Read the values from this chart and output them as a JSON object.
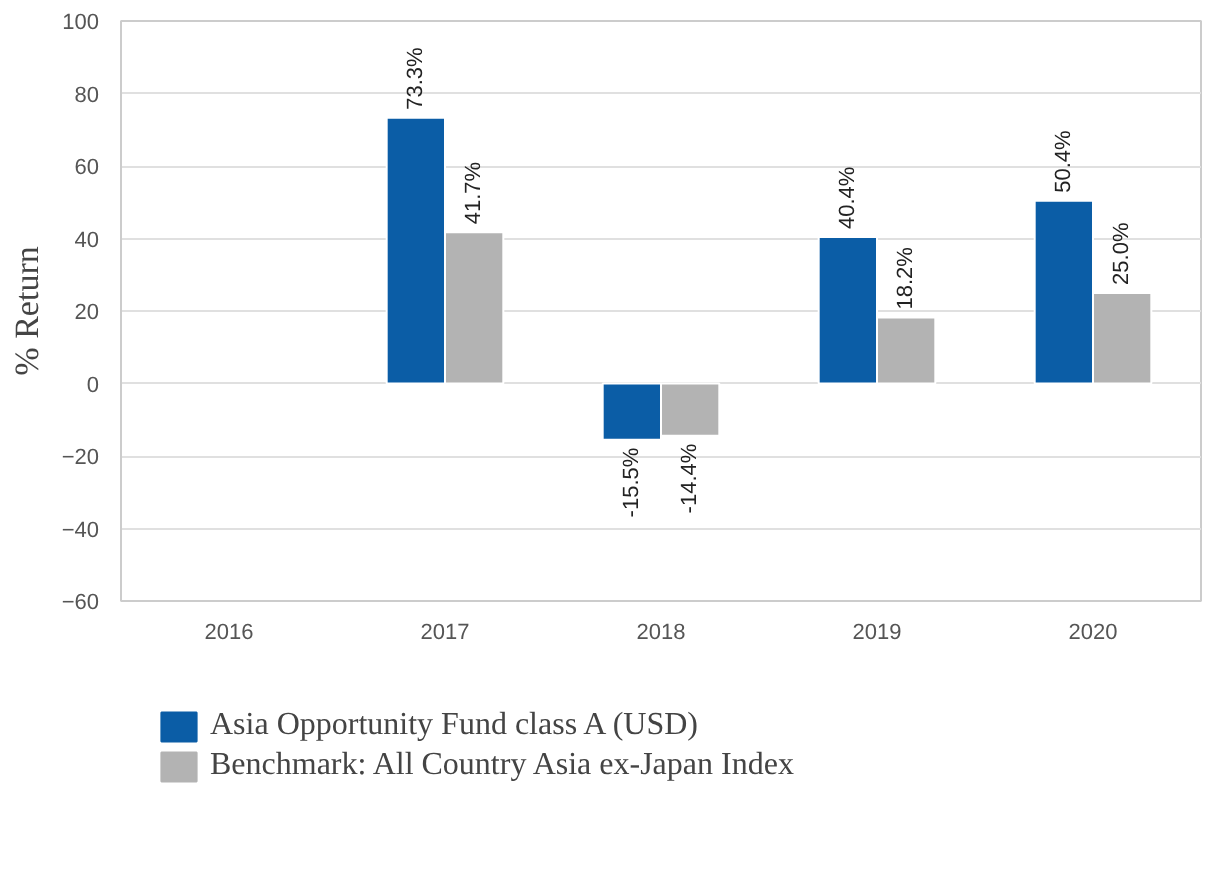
{
  "chart_data": {
    "type": "bar",
    "ylabel": "% Return",
    "categories": [
      "2016",
      "2017",
      "2018",
      "2019",
      "2020"
    ],
    "series": [
      {
        "name": "Asia Opportunity Fund class A (USD)",
        "color": "#0b5da6",
        "values": [
          null,
          73.3,
          -15.5,
          40.4,
          50.4
        ],
        "value_labels": [
          null,
          "73.3%",
          "-15.5%",
          "40.4%",
          "50.4%"
        ]
      },
      {
        "name": "Benchmark: All Country Asia ex-Japan Index",
        "color": "#b3b3b3",
        "values": [
          null,
          41.7,
          -14.4,
          18.2,
          25.0
        ],
        "value_labels": [
          null,
          "41.7%",
          "-14.4%",
          "18.2%",
          "25.0%"
        ]
      }
    ],
    "ylim": [
      -60,
      100
    ],
    "yticks": [
      -60,
      -40,
      -20,
      0,
      20,
      40,
      60,
      80,
      100
    ],
    "grid": "y",
    "legend": "bottom"
  }
}
